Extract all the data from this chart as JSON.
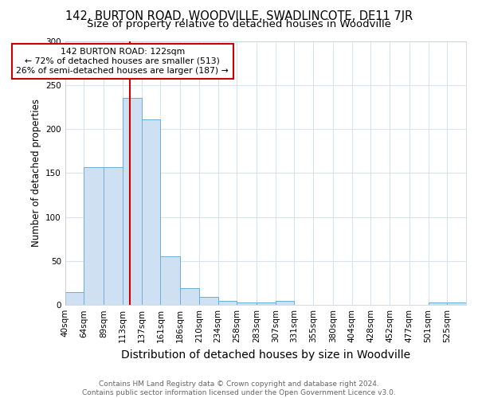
{
  "title": "142, BURTON ROAD, WOODVILLE, SWADLINCOTE, DE11 7JR",
  "subtitle": "Size of property relative to detached houses in Woodville",
  "xlabel": "Distribution of detached houses by size in Woodville",
  "ylabel": "Number of detached properties",
  "bin_labels": [
    "40sqm",
    "64sqm",
    "89sqm",
    "113sqm",
    "137sqm",
    "161sqm",
    "186sqm",
    "210sqm",
    "234sqm",
    "258sqm",
    "283sqm",
    "307sqm",
    "331sqm",
    "355sqm",
    "380sqm",
    "404sqm",
    "428sqm",
    "452sqm",
    "477sqm",
    "501sqm",
    "525sqm"
  ],
  "bin_edges": [
    40,
    64,
    89,
    113,
    137,
    161,
    186,
    210,
    234,
    258,
    283,
    307,
    331,
    355,
    380,
    404,
    428,
    452,
    477,
    501,
    525,
    549
  ],
  "bar_values": [
    15,
    157,
    157,
    235,
    211,
    55,
    19,
    9,
    5,
    3,
    3,
    5,
    0,
    0,
    0,
    0,
    0,
    0,
    0,
    3,
    3
  ],
  "bar_color": "#cfe0f3",
  "bar_edge_color": "#6aaed6",
  "red_line_x": 122,
  "red_line_color": "#cc0000",
  "annotation_text": "142 BURTON ROAD: 122sqm\n← 72% of detached houses are smaller (513)\n26% of semi-detached houses are larger (187) →",
  "annotation_box_color": "#ffffff",
  "annotation_box_edge_color": "#cc0000",
  "ylim": [
    0,
    300
  ],
  "yticks": [
    0,
    50,
    100,
    150,
    200,
    250,
    300
  ],
  "footnote": "Contains HM Land Registry data © Crown copyright and database right 2024.\nContains public sector information licensed under the Open Government Licence v3.0.",
  "bg_color": "#ffffff",
  "grid_color": "#d8e4f0",
  "title_fontsize": 10.5,
  "subtitle_fontsize": 9.5,
  "xlabel_fontsize": 10,
  "ylabel_fontsize": 8.5,
  "tick_fontsize": 7.5,
  "footnote_fontsize": 6.5,
  "footnote_color": "#666666"
}
